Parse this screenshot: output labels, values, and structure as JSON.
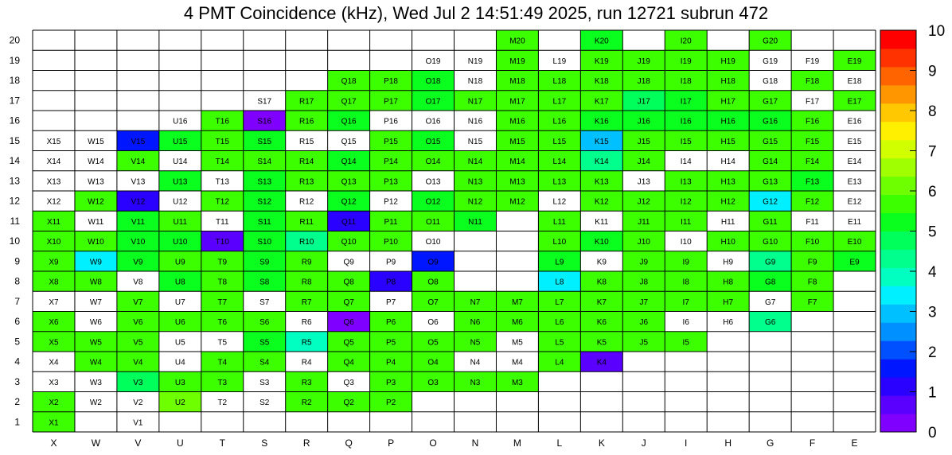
{
  "title": "4 PMT Coincidence (kHz), Wed Jul  2 14:51:49 2025, run 12721 subrun 472",
  "chart_data": {
    "type": "heatmap",
    "title": "4 PMT Coincidence (kHz), Wed Jul  2 14:51:49 2025, run 12721 subrun 472",
    "columns": [
      "X",
      "W",
      "V",
      "U",
      "T",
      "S",
      "R",
      "Q",
      "P",
      "O",
      "N",
      "M",
      "L",
      "K",
      "J",
      "I",
      "H",
      "G",
      "F",
      "E"
    ],
    "rows": [
      1,
      2,
      3,
      4,
      5,
      6,
      7,
      8,
      9,
      10,
      11,
      12,
      13,
      14,
      15,
      16,
      17,
      18,
      19,
      20
    ],
    "zlim": [
      0,
      10
    ],
    "colorbar_ticks": [
      0,
      1,
      2,
      3,
      4,
      5,
      6,
      7,
      8,
      9,
      10
    ],
    "palette": [
      "#7f00ff",
      "#5a00ff",
      "#2a00ff",
      "#0016ff",
      "#0050ff",
      "#0090ff",
      "#00c0ff",
      "#00f0ff",
      "#00ffc0",
      "#00ff8c",
      "#00ff5a",
      "#0aff1e",
      "#3cff00",
      "#6eff00",
      "#a0ff00",
      "#d2ff00",
      "#fff000",
      "#ffc800",
      "#ff9600",
      "#ff6400",
      "#ff3200",
      "#ff0000"
    ],
    "cells": [
      {
        "label": "X1",
        "value": 5.5
      },
      {
        "label": "V1",
        "value": null
      },
      {
        "label": "X2",
        "value": 5.5
      },
      {
        "label": "W2",
        "value": null
      },
      {
        "label": "V2",
        "value": null
      },
      {
        "label": "U2",
        "value": 6.0
      },
      {
        "label": "T2",
        "value": null
      },
      {
        "label": "S2",
        "value": null
      },
      {
        "label": "R2",
        "value": 5.5
      },
      {
        "label": "Q2",
        "value": 5.5
      },
      {
        "label": "P2",
        "value": 5.5
      },
      {
        "label": "X3",
        "value": null
      },
      {
        "label": "W3",
        "value": null
      },
      {
        "label": "V3",
        "value": 4.8
      },
      {
        "label": "U3",
        "value": 5.5
      },
      {
        "label": "T3",
        "value": 5.5
      },
      {
        "label": "S3",
        "value": null
      },
      {
        "label": "R3",
        "value": 5.5
      },
      {
        "label": "Q3",
        "value": null
      },
      {
        "label": "P3",
        "value": 5.5
      },
      {
        "label": "O3",
        "value": 5.5
      },
      {
        "label": "N3",
        "value": 5.5
      },
      {
        "label": "M3",
        "value": 5.5
      },
      {
        "label": "X4",
        "value": null
      },
      {
        "label": "W4",
        "value": 5.5
      },
      {
        "label": "V4",
        "value": 5.5
      },
      {
        "label": "U4",
        "value": null
      },
      {
        "label": "T4",
        "value": 5.5
      },
      {
        "label": "S4",
        "value": 5.5
      },
      {
        "label": "R4",
        "value": null
      },
      {
        "label": "Q4",
        "value": 5.5
      },
      {
        "label": "P4",
        "value": 5.5
      },
      {
        "label": "O4",
        "value": 5.5
      },
      {
        "label": "N4",
        "value": null
      },
      {
        "label": "M4",
        "value": null
      },
      {
        "label": "L4",
        "value": 5.5
      },
      {
        "label": "K4",
        "value": 0.5
      },
      {
        "label": "X5",
        "value": 5.5
      },
      {
        "label": "W5",
        "value": 5.5
      },
      {
        "label": "V5",
        "value": 5.5
      },
      {
        "label": "U5",
        "value": null
      },
      {
        "label": "T5",
        "value": null
      },
      {
        "label": "S5",
        "value": 5.0
      },
      {
        "label": "R5",
        "value": 4.0
      },
      {
        "label": "Q5",
        "value": 5.5
      },
      {
        "label": "P5",
        "value": 5.5
      },
      {
        "label": "O5",
        "value": 5.5
      },
      {
        "label": "N5",
        "value": 5.5
      },
      {
        "label": "M5",
        "value": null
      },
      {
        "label": "L5",
        "value": 5.5
      },
      {
        "label": "K5",
        "value": 5.5
      },
      {
        "label": "J5",
        "value": 5.5
      },
      {
        "label": "I5",
        "value": 5.5
      },
      {
        "label": "X6",
        "value": 5.5
      },
      {
        "label": "W6",
        "value": null
      },
      {
        "label": "V6",
        "value": 5.5
      },
      {
        "label": "U6",
        "value": 5.5
      },
      {
        "label": "T6",
        "value": 5.5
      },
      {
        "label": "S6",
        "value": 5.5
      },
      {
        "label": "R6",
        "value": null
      },
      {
        "label": "Q6",
        "value": 0.3
      },
      {
        "label": "P6",
        "value": 5.5
      },
      {
        "label": "O6",
        "value": null
      },
      {
        "label": "N6",
        "value": 5.5
      },
      {
        "label": "M6",
        "value": 5.5
      },
      {
        "label": "L6",
        "value": 5.5
      },
      {
        "label": "K6",
        "value": 5.5
      },
      {
        "label": "J6",
        "value": 5.5
      },
      {
        "label": "I6",
        "value": null
      },
      {
        "label": "H6",
        "value": null
      },
      {
        "label": "G6",
        "value": 4.2
      },
      {
        "label": "X7",
        "value": null
      },
      {
        "label": "W7",
        "value": null
      },
      {
        "label": "V7",
        "value": 5.5
      },
      {
        "label": "U7",
        "value": null
      },
      {
        "label": "T7",
        "value": 5.5
      },
      {
        "label": "S7",
        "value": null
      },
      {
        "label": "R7",
        "value": 5.5
      },
      {
        "label": "Q7",
        "value": 5.5
      },
      {
        "label": "P7",
        "value": null
      },
      {
        "label": "O7",
        "value": 5.5
      },
      {
        "label": "N7",
        "value": 5.5
      },
      {
        "label": "M7",
        "value": 5.5
      },
      {
        "label": "L7",
        "value": 5.5
      },
      {
        "label": "K7",
        "value": 5.5
      },
      {
        "label": "J7",
        "value": 5.5
      },
      {
        "label": "I7",
        "value": 5.5
      },
      {
        "label": "H7",
        "value": 5.5
      },
      {
        "label": "G7",
        "value": null
      },
      {
        "label": "F7",
        "value": 5.5
      },
      {
        "label": "X8",
        "value": 5.5
      },
      {
        "label": "W8",
        "value": 5.5
      },
      {
        "label": "V8",
        "value": null
      },
      {
        "label": "U8",
        "value": 5.0
      },
      {
        "label": "T8",
        "value": 5.5
      },
      {
        "label": "S8",
        "value": 5.0
      },
      {
        "label": "R8",
        "value": 5.5
      },
      {
        "label": "Q8",
        "value": 5.5
      },
      {
        "label": "P8",
        "value": 1.0
      },
      {
        "label": "O8",
        "value": 5.5
      },
      {
        "label": "L8",
        "value": 3.5
      },
      {
        "label": "K8",
        "value": 5.5
      },
      {
        "label": "J8",
        "value": 5.5
      },
      {
        "label": "I8",
        "value": 5.5
      },
      {
        "label": "H8",
        "value": 5.5
      },
      {
        "label": "G8",
        "value": 5.0
      },
      {
        "label": "F8",
        "value": 5.5
      },
      {
        "label": "X9",
        "value": 5.5
      },
      {
        "label": "W9",
        "value": 3.5
      },
      {
        "label": "V9",
        "value": 5.0
      },
      {
        "label": "U9",
        "value": 5.5
      },
      {
        "label": "T9",
        "value": 5.5
      },
      {
        "label": "S9",
        "value": 5.0
      },
      {
        "label": "R9",
        "value": 5.5
      },
      {
        "label": "Q9",
        "value": null
      },
      {
        "label": "P9",
        "value": null
      },
      {
        "label": "O9",
        "value": 1.5
      },
      {
        "label": "L9",
        "value": 5.0
      },
      {
        "label": "K9",
        "value": null
      },
      {
        "label": "J9",
        "value": 5.5
      },
      {
        "label": "I9",
        "value": 5.5
      },
      {
        "label": "H9",
        "value": null
      },
      {
        "label": "G9",
        "value": 4.2
      },
      {
        "label": "F9",
        "value": 5.5
      },
      {
        "label": "E9",
        "value": 5.0
      },
      {
        "label": "X10",
        "value": 5.5
      },
      {
        "label": "W10",
        "value": 5.5
      },
      {
        "label": "V10",
        "value": 5.0
      },
      {
        "label": "U10",
        "value": 5.0
      },
      {
        "label": "T10",
        "value": 0.5
      },
      {
        "label": "S10",
        "value": 5.0
      },
      {
        "label": "R10",
        "value": 4.3
      },
      {
        "label": "Q10",
        "value": 5.5
      },
      {
        "label": "P10",
        "value": 5.5
      },
      {
        "label": "O10",
        "value": null
      },
      {
        "label": "L10",
        "value": 5.5
      },
      {
        "label": "K10",
        "value": 5.0
      },
      {
        "label": "J10",
        "value": 5.5
      },
      {
        "label": "I10",
        "value": null
      },
      {
        "label": "H10",
        "value": 5.5
      },
      {
        "label": "G10",
        "value": 5.5
      },
      {
        "label": "F10",
        "value": 5.5
      },
      {
        "label": "E10",
        "value": 5.5
      },
      {
        "label": "X11",
        "value": 5.5
      },
      {
        "label": "W11",
        "value": null
      },
      {
        "label": "V11",
        "value": 5.0
      },
      {
        "label": "U11",
        "value": 5.5
      },
      {
        "label": "T11",
        "value": null
      },
      {
        "label": "S11",
        "value": 5.0
      },
      {
        "label": "R11",
        "value": 5.5
      },
      {
        "label": "Q11",
        "value": 1.0
      },
      {
        "label": "P11",
        "value": 5.5
      },
      {
        "label": "O11",
        "value": 5.5
      },
      {
        "label": "N11",
        "value": 5.0
      },
      {
        "label": "L11",
        "value": 5.5
      },
      {
        "label": "K11",
        "value": null
      },
      {
        "label": "J11",
        "value": 5.5
      },
      {
        "label": "I11",
        "value": 5.5
      },
      {
        "label": "H11",
        "value": null
      },
      {
        "label": "G11",
        "value": 5.5
      },
      {
        "label": "F11",
        "value": null
      },
      {
        "label": "E11",
        "value": null
      },
      {
        "label": "X12",
        "value": null
      },
      {
        "label": "W12",
        "value": 5.5
      },
      {
        "label": "V12",
        "value": 1.0
      },
      {
        "label": "U12",
        "value": null
      },
      {
        "label": "T12",
        "value": 5.5
      },
      {
        "label": "S12",
        "value": 5.0
      },
      {
        "label": "R12",
        "value": null
      },
      {
        "label": "Q12",
        "value": 5.0
      },
      {
        "label": "P12",
        "value": null
      },
      {
        "label": "O12",
        "value": 5.0
      },
      {
        "label": "N12",
        "value": 5.5
      },
      {
        "label": "M12",
        "value": 5.5
      },
      {
        "label": "L12",
        "value": null
      },
      {
        "label": "K12",
        "value": 5.5
      },
      {
        "label": "J12",
        "value": 5.5
      },
      {
        "label": "I12",
        "value": 5.5
      },
      {
        "label": "H12",
        "value": 5.5
      },
      {
        "label": "G12",
        "value": 3.5
      },
      {
        "label": "F12",
        "value": 5.5
      },
      {
        "label": "E12",
        "value": null
      },
      {
        "label": "X13",
        "value": null
      },
      {
        "label": "W13",
        "value": null
      },
      {
        "label": "V13",
        "value": null
      },
      {
        "label": "U13",
        "value": 5.0
      },
      {
        "label": "T13",
        "value": null
      },
      {
        "label": "S13",
        "value": 5.0
      },
      {
        "label": "R13",
        "value": 5.5
      },
      {
        "label": "Q13",
        "value": 5.5
      },
      {
        "label": "P13",
        "value": 5.5
      },
      {
        "label": "O13",
        "value": null
      },
      {
        "label": "N13",
        "value": 5.5
      },
      {
        "label": "M13",
        "value": 5.5
      },
      {
        "label": "L13",
        "value": 5.5
      },
      {
        "label": "K13",
        "value": 5.5
      },
      {
        "label": "J13",
        "value": null
      },
      {
        "label": "I13",
        "value": 5.5
      },
      {
        "label": "H13",
        "value": 5.5
      },
      {
        "label": "G13",
        "value": 5.5
      },
      {
        "label": "F13",
        "value": 5.0
      },
      {
        "label": "E13",
        "value": null
      },
      {
        "label": "X14",
        "value": null
      },
      {
        "label": "W14",
        "value": null
      },
      {
        "label": "V14",
        "value": 5.5
      },
      {
        "label": "U14",
        "value": null
      },
      {
        "label": "T14",
        "value": 5.5
      },
      {
        "label": "S14",
        "value": 5.5
      },
      {
        "label": "R14",
        "value": 5.5
      },
      {
        "label": "Q14",
        "value": 5.0
      },
      {
        "label": "P14",
        "value": 5.5
      },
      {
        "label": "O14",
        "value": 5.5
      },
      {
        "label": "N14",
        "value": 5.5
      },
      {
        "label": "M14",
        "value": 5.5
      },
      {
        "label": "L14",
        "value": 5.5
      },
      {
        "label": "K14",
        "value": 4.3
      },
      {
        "label": "J14",
        "value": 5.5
      },
      {
        "label": "I14",
        "value": null
      },
      {
        "label": "H14",
        "value": null
      },
      {
        "label": "G14",
        "value": 5.5
      },
      {
        "label": "F14",
        "value": 5.5
      },
      {
        "label": "E14",
        "value": null
      },
      {
        "label": "X15",
        "value": null
      },
      {
        "label": "W15",
        "value": null
      },
      {
        "label": "V15",
        "value": 1.5
      },
      {
        "label": "U15",
        "value": 5.0
      },
      {
        "label": "T15",
        "value": 5.5
      },
      {
        "label": "S15",
        "value": 5.0
      },
      {
        "label": "R15",
        "value": null
      },
      {
        "label": "Q15",
        "value": null
      },
      {
        "label": "P15",
        "value": 5.5
      },
      {
        "label": "O15",
        "value": 5.0
      },
      {
        "label": "N15",
        "value": null
      },
      {
        "label": "M15",
        "value": 5.5
      },
      {
        "label": "L15",
        "value": 5.5
      },
      {
        "label": "K15",
        "value": 3.0
      },
      {
        "label": "J15",
        "value": 5.5
      },
      {
        "label": "I15",
        "value": 5.5
      },
      {
        "label": "H15",
        "value": 5.5
      },
      {
        "label": "G15",
        "value": 5.5
      },
      {
        "label": "F15",
        "value": 5.5
      },
      {
        "label": "E15",
        "value": null
      },
      {
        "label": "U16",
        "value": null
      },
      {
        "label": "T16",
        "value": 5.5
      },
      {
        "label": "S16",
        "value": 0.3
      },
      {
        "label": "R16",
        "value": 5.5
      },
      {
        "label": "Q16",
        "value": 5.0
      },
      {
        "label": "P16",
        "value": null
      },
      {
        "label": "O16",
        "value": null
      },
      {
        "label": "N16",
        "value": null
      },
      {
        "label": "M16",
        "value": 5.5
      },
      {
        "label": "L16",
        "value": 5.5
      },
      {
        "label": "K16",
        "value": 5.0
      },
      {
        "label": "J16",
        "value": 5.0
      },
      {
        "label": "I16",
        "value": 5.0
      },
      {
        "label": "H16",
        "value": 5.0
      },
      {
        "label": "G16",
        "value": 5.0
      },
      {
        "label": "F16",
        "value": 5.5
      },
      {
        "label": "E16",
        "value": null
      },
      {
        "label": "S17",
        "value": null
      },
      {
        "label": "R17",
        "value": 5.5
      },
      {
        "label": "Q17",
        "value": 5.5
      },
      {
        "label": "P17",
        "value": 5.5
      },
      {
        "label": "O17",
        "value": 5.0
      },
      {
        "label": "N17",
        "value": 5.5
      },
      {
        "label": "M17",
        "value": 5.5
      },
      {
        "label": "L17",
        "value": 5.5
      },
      {
        "label": "K17",
        "value": 5.5
      },
      {
        "label": "J17",
        "value": 4.8
      },
      {
        "label": "I17",
        "value": 5.0
      },
      {
        "label": "H17",
        "value": 5.5
      },
      {
        "label": "G17",
        "value": 5.5
      },
      {
        "label": "F17",
        "value": null
      },
      {
        "label": "E17",
        "value": 5.5
      },
      {
        "label": "Q18",
        "value": 5.5
      },
      {
        "label": "P18",
        "value": 5.5
      },
      {
        "label": "O18",
        "value": 5.0
      },
      {
        "label": "N18",
        "value": null
      },
      {
        "label": "M18",
        "value": 5.5
      },
      {
        "label": "L18",
        "value": 5.5
      },
      {
        "label": "K18",
        "value": 5.5
      },
      {
        "label": "J18",
        "value": 5.5
      },
      {
        "label": "I18",
        "value": 5.5
      },
      {
        "label": "H18",
        "value": 5.5
      },
      {
        "label": "G18",
        "value": null
      },
      {
        "label": "F18",
        "value": 5.5
      },
      {
        "label": "E18",
        "value": null
      },
      {
        "label": "O19",
        "value": null
      },
      {
        "label": "N19",
        "value": null
      },
      {
        "label": "M19",
        "value": 5.5
      },
      {
        "label": "L19",
        "value": null
      },
      {
        "label": "K19",
        "value": 5.5
      },
      {
        "label": "J19",
        "value": 5.5
      },
      {
        "label": "I19",
        "value": 5.5
      },
      {
        "label": "H19",
        "value": 5.5
      },
      {
        "label": "G19",
        "value": null
      },
      {
        "label": "F19",
        "value": null
      },
      {
        "label": "E19",
        "value": 5.5
      },
      {
        "label": "M20",
        "value": 5.5
      },
      {
        "label": "K20",
        "value": 5.0
      },
      {
        "label": "I20",
        "value": 5.5
      },
      {
        "label": "G20",
        "value": 5.5
      }
    ]
  }
}
